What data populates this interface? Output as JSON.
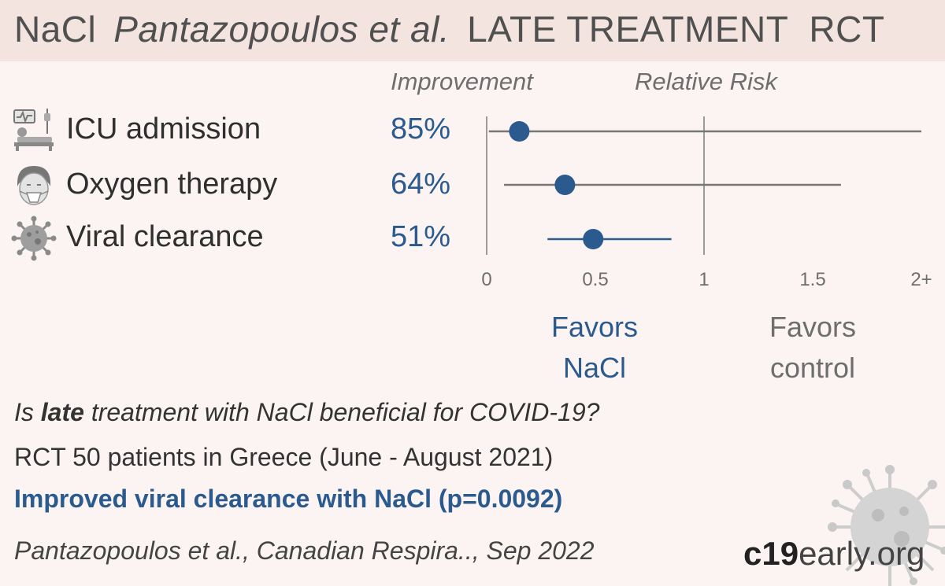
{
  "header": {
    "treatment": "NaCl",
    "study": "Pantazopoulos et al.",
    "setting": "LATE TREATMENT",
    "design": "RCT"
  },
  "columns": {
    "improvement": "Improvement",
    "relative_risk": "Relative Risk"
  },
  "favors": {
    "treatment_line1": "Favors",
    "treatment_line2": "NaCl",
    "control_line1": "Favors",
    "control_line2": "control"
  },
  "summary": {
    "question_prefix": "Is ",
    "question_bold": "late",
    "question_suffix": " treatment with NaCl beneficial for COVID-19?",
    "details": "RCT 50 patients in Greece (June - August 2021)",
    "conclusion": "Improved viral clearance with NaCl (p=0.0092)",
    "citation": "Pantazopoulos et al., Canadian Respira.., Sep 2022"
  },
  "brand": {
    "part1": "c19",
    "part2": "early",
    "part3": ".org"
  },
  "colors": {
    "accent": "#2b5a8f",
    "banner": "#f3e4e0",
    "background": "#fbf4f2",
    "ci_line": "#777777"
  },
  "chart_data": {
    "type": "forest",
    "x_ticks": [
      "0",
      "0.5",
      "1",
      "1.5",
      "2+"
    ],
    "xlim": [
      0,
      2
    ],
    "reference_line": 1,
    "rows": [
      {
        "label": "ICU admission",
        "icon": "icu-bed-icon",
        "improvement": "85%",
        "rr": 0.15,
        "ci_low": 0.01,
        "ci_high": 2.0,
        "ci_high_clipped": true
      },
      {
        "label": "Oxygen therapy",
        "icon": "oxygen-mask-icon",
        "improvement": "64%",
        "rr": 0.36,
        "ci_low": 0.08,
        "ci_high": 1.63
      },
      {
        "label": "Viral clearance",
        "icon": "virus-icon",
        "improvement": "51%",
        "rr": 0.49,
        "ci_low": 0.28,
        "ci_high": 0.85
      }
    ]
  }
}
